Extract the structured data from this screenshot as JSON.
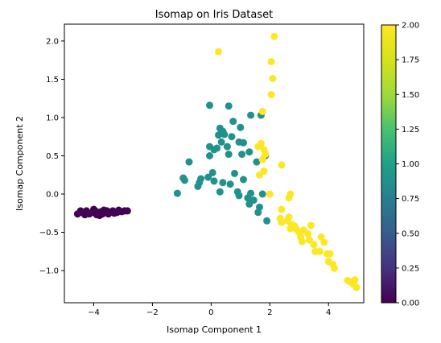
{
  "chart_data": {
    "type": "scatter",
    "title": "Isomap on Iris Dataset",
    "xlabel": "Isomap Component 1",
    "ylabel": "Isomap Component 2",
    "xlim": [
      -5.0,
      5.2
    ],
    "ylim": [
      -1.42,
      2.22
    ],
    "x_ticks": [
      -4,
      -2,
      0,
      2,
      4
    ],
    "x_tick_labels": [
      "−4",
      "−2",
      "0",
      "2",
      "4"
    ],
    "y_ticks": [
      -1.0,
      -0.5,
      0.0,
      0.5,
      1.0,
      1.5,
      2.0
    ],
    "y_tick_labels": [
      "−1.0",
      "−0.5",
      "0.0",
      "0.5",
      "1.0",
      "1.5",
      "2.0"
    ],
    "grid": false,
    "colorbar": {
      "colormap": "viridis",
      "range": [
        0.0,
        2.0
      ],
      "ticks": [
        0.0,
        0.25,
        0.5,
        0.75,
        1.0,
        1.25,
        1.5,
        1.75,
        2.0
      ],
      "tick_labels": [
        "0.00",
        "0.25",
        "0.50",
        "0.75",
        "1.00",
        "1.25",
        "1.50",
        "1.75",
        "2.00"
      ]
    },
    "class_colors": [
      "#440154",
      "#21918c",
      "#fde725"
    ],
    "points": [
      {
        "x": -4.55,
        "y": -0.26,
        "c": 0
      },
      {
        "x": -4.45,
        "y": -0.22,
        "c": 0
      },
      {
        "x": -4.35,
        "y": -0.25,
        "c": 0
      },
      {
        "x": -4.25,
        "y": -0.22,
        "c": 0
      },
      {
        "x": -4.15,
        "y": -0.26,
        "c": 0
      },
      {
        "x": -4.05,
        "y": -0.24,
        "c": 0
      },
      {
        "x": -3.95,
        "y": -0.22,
        "c": 0
      },
      {
        "x": -3.9,
        "y": -0.27,
        "c": 0
      },
      {
        "x": -3.85,
        "y": -0.24,
        "c": 0
      },
      {
        "x": -3.75,
        "y": -0.23,
        "c": 0
      },
      {
        "x": -3.7,
        "y": -0.26,
        "c": 0
      },
      {
        "x": -3.6,
        "y": -0.24,
        "c": 0
      },
      {
        "x": -3.55,
        "y": -0.22,
        "c": 0
      },
      {
        "x": -3.5,
        "y": -0.26,
        "c": 0
      },
      {
        "x": -3.45,
        "y": -0.24,
        "c": 0
      },
      {
        "x": -3.35,
        "y": -0.22,
        "c": 0
      },
      {
        "x": -3.3,
        "y": -0.25,
        "c": 0
      },
      {
        "x": -3.2,
        "y": -0.24,
        "c": 0
      },
      {
        "x": -3.15,
        "y": -0.21,
        "c": 0
      },
      {
        "x": -3.05,
        "y": -0.23,
        "c": 0
      },
      {
        "x": -2.95,
        "y": -0.22,
        "c": 0
      },
      {
        "x": -2.85,
        "y": -0.22,
        "c": 0
      },
      {
        "x": -4.0,
        "y": -0.2,
        "c": 0
      },
      {
        "x": -3.65,
        "y": -0.21,
        "c": 0
      },
      {
        "x": -4.3,
        "y": -0.27,
        "c": 0
      },
      {
        "x": -3.8,
        "y": -0.28,
        "c": 0
      },
      {
        "x": -1.15,
        "y": 0.01,
        "c": 1
      },
      {
        "x": -0.95,
        "y": 0.21,
        "c": 1
      },
      {
        "x": -0.9,
        "y": 0.18,
        "c": 1
      },
      {
        "x": -0.75,
        "y": 0.42,
        "c": 1
      },
      {
        "x": -0.45,
        "y": 0.1,
        "c": 1
      },
      {
        "x": -0.4,
        "y": 0.15,
        "c": 1
      },
      {
        "x": -0.35,
        "y": 0.2,
        "c": 1
      },
      {
        "x": -0.1,
        "y": 0.22,
        "c": 1
      },
      {
        "x": 0.05,
        "y": 0.28,
        "c": 1
      },
      {
        "x": 0.1,
        "y": 0.17,
        "c": 1
      },
      {
        "x": 0.3,
        "y": 0.03,
        "c": 1
      },
      {
        "x": 0.4,
        "y": 0.15,
        "c": 1
      },
      {
        "x": 0.65,
        "y": 0.13,
        "c": 1
      },
      {
        "x": 0.8,
        "y": 0.27,
        "c": 1
      },
      {
        "x": 0.9,
        "y": 0.03,
        "c": 1
      },
      {
        "x": 0.95,
        "y": -0.02,
        "c": 1
      },
      {
        "x": 1.1,
        "y": 0.19,
        "c": 1
      },
      {
        "x": 1.25,
        "y": -0.05,
        "c": 1
      },
      {
        "x": 1.3,
        "y": -0.13,
        "c": 1
      },
      {
        "x": 1.35,
        "y": 0.01,
        "c": 1
      },
      {
        "x": 1.45,
        "y": -0.08,
        "c": 1
      },
      {
        "x": 1.6,
        "y": -0.24,
        "c": 1
      },
      {
        "x": 1.65,
        "y": -0.17,
        "c": 1
      },
      {
        "x": 1.75,
        "y": 0.0,
        "c": 1
      },
      {
        "x": 1.9,
        "y": -0.35,
        "c": 1
      },
      {
        "x": -0.05,
        "y": 0.5,
        "c": 1
      },
      {
        "x": -0.05,
        "y": 0.62,
        "c": 1
      },
      {
        "x": 0.1,
        "y": 0.58,
        "c": 1
      },
      {
        "x": 0.2,
        "y": 0.6,
        "c": 1
      },
      {
        "x": 0.25,
        "y": 0.77,
        "c": 1
      },
      {
        "x": 0.3,
        "y": 0.86,
        "c": 1
      },
      {
        "x": 0.35,
        "y": 0.68,
        "c": 1
      },
      {
        "x": 0.4,
        "y": 0.82,
        "c": 1
      },
      {
        "x": 0.55,
        "y": 0.62,
        "c": 1
      },
      {
        "x": 0.6,
        "y": 0.52,
        "c": 1
      },
      {
        "x": 0.7,
        "y": 0.75,
        "c": 1
      },
      {
        "x": 0.75,
        "y": 0.95,
        "c": 1
      },
      {
        "x": 0.95,
        "y": 0.68,
        "c": 1
      },
      {
        "x": 1.0,
        "y": 0.87,
        "c": 1
      },
      {
        "x": 1.05,
        "y": 0.52,
        "c": 1
      },
      {
        "x": 1.1,
        "y": 0.67,
        "c": 1
      },
      {
        "x": 1.3,
        "y": 0.55,
        "c": 1
      },
      {
        "x": 1.35,
        "y": 1.03,
        "c": 1
      },
      {
        "x": 1.55,
        "y": 0.42,
        "c": 1
      },
      {
        "x": 1.7,
        "y": 1.03,
        "c": 1
      },
      {
        "x": 1.85,
        "y": 0.5,
        "c": 1
      },
      {
        "x": -0.05,
        "y": 1.16,
        "c": 1
      },
      {
        "x": 0.6,
        "y": 1.15,
        "c": 1
      },
      {
        "x": 0.45,
        "y": 0.78,
        "c": 1
      },
      {
        "x": 0.25,
        "y": 1.86,
        "c": 2
      },
      {
        "x": 2.15,
        "y": 2.06,
        "c": 2
      },
      {
        "x": 2.05,
        "y": 1.73,
        "c": 2
      },
      {
        "x": 2.1,
        "y": 1.51,
        "c": 2
      },
      {
        "x": 2.05,
        "y": 1.3,
        "c": 2
      },
      {
        "x": 1.75,
        "y": 1.08,
        "c": 2
      },
      {
        "x": 1.6,
        "y": 0.62,
        "c": 2
      },
      {
        "x": 1.7,
        "y": 0.66,
        "c": 2
      },
      {
        "x": 1.8,
        "y": 0.58,
        "c": 2
      },
      {
        "x": 1.85,
        "y": 0.52,
        "c": 2
      },
      {
        "x": 1.75,
        "y": 0.45,
        "c": 2
      },
      {
        "x": 1.8,
        "y": 0.3,
        "c": 2
      },
      {
        "x": 1.65,
        "y": 0.25,
        "c": 2
      },
      {
        "x": 2.4,
        "y": 0.38,
        "c": 2
      },
      {
        "x": 2.0,
        "y": 0.0,
        "c": 2
      },
      {
        "x": 2.4,
        "y": -0.2,
        "c": 2
      },
      {
        "x": 2.65,
        "y": -0.05,
        "c": 2
      },
      {
        "x": 2.7,
        "y": 0.0,
        "c": 2
      },
      {
        "x": 2.35,
        "y": -0.32,
        "c": 2
      },
      {
        "x": 2.4,
        "y": -0.37,
        "c": 2
      },
      {
        "x": 2.6,
        "y": -0.35,
        "c": 2
      },
      {
        "x": 2.65,
        "y": -0.3,
        "c": 2
      },
      {
        "x": 2.75,
        "y": -0.4,
        "c": 2
      },
      {
        "x": 2.7,
        "y": -0.45,
        "c": 2
      },
      {
        "x": 2.85,
        "y": -0.42,
        "c": 2
      },
      {
        "x": 2.9,
        "y": -0.46,
        "c": 2
      },
      {
        "x": 3.0,
        "y": -0.5,
        "c": 2
      },
      {
        "x": 3.05,
        "y": -0.56,
        "c": 2
      },
      {
        "x": 3.1,
        "y": -0.62,
        "c": 2
      },
      {
        "x": 3.15,
        "y": -0.47,
        "c": 2
      },
      {
        "x": 3.3,
        "y": -0.52,
        "c": 2
      },
      {
        "x": 3.35,
        "y": -0.6,
        "c": 2
      },
      {
        "x": 3.4,
        "y": -0.41,
        "c": 2
      },
      {
        "x": 3.5,
        "y": -0.66,
        "c": 2
      },
      {
        "x": 3.55,
        "y": -0.75,
        "c": 2
      },
      {
        "x": 3.7,
        "y": -0.75,
        "c": 2
      },
      {
        "x": 3.75,
        "y": -0.56,
        "c": 2
      },
      {
        "x": 3.85,
        "y": -0.63,
        "c": 2
      },
      {
        "x": 3.95,
        "y": -0.78,
        "c": 2
      },
      {
        "x": 4.0,
        "y": -0.88,
        "c": 2
      },
      {
        "x": 4.05,
        "y": -0.78,
        "c": 2
      },
      {
        "x": 4.15,
        "y": -0.92,
        "c": 2
      },
      {
        "x": 4.2,
        "y": -0.97,
        "c": 2
      },
      {
        "x": 4.65,
        "y": -1.13,
        "c": 2
      },
      {
        "x": 4.75,
        "y": -1.15,
        "c": 2
      },
      {
        "x": 4.85,
        "y": -1.18,
        "c": 2
      },
      {
        "x": 4.9,
        "y": -1.12,
        "c": 2
      },
      {
        "x": 4.95,
        "y": -1.22,
        "c": 2
      }
    ]
  }
}
